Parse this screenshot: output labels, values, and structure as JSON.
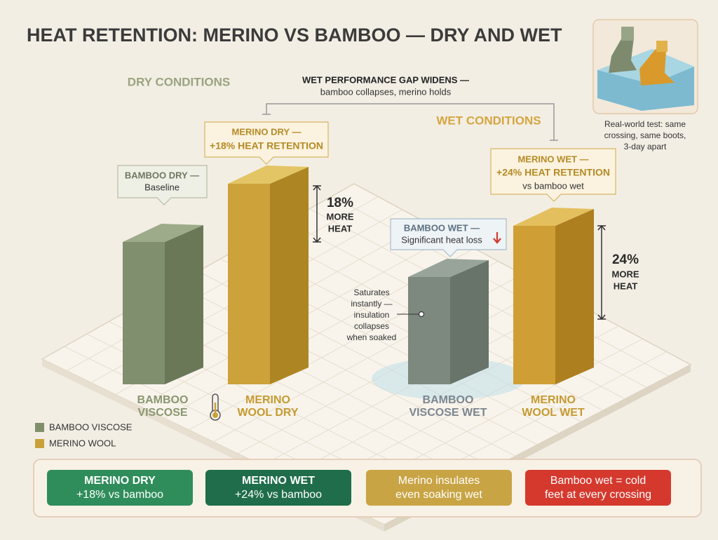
{
  "title": "HEAT RETENTION: MERINO VS BAMBOO — DRY AND WET",
  "sections": {
    "dry": "DRY CONDITIONS",
    "wet": "WET CONDITIONS"
  },
  "gap_note": {
    "title": "WET PERFORMANCE GAP WIDENS —",
    "subtitle": "bamboo collapses, merino holds"
  },
  "callouts": [
    {
      "title": "BAMBOO DRY —",
      "text": "Baseline"
    },
    {
      "title": "MERINO DRY —",
      "text": "+18% HEAT RETENTION"
    },
    {
      "title": "BAMBOO WET —",
      "text": "Significant heat loss"
    },
    {
      "title": "MERINO WET —",
      "text": "+24% HEAT RETENTION",
      "note": "vs bamboo wet"
    }
  ],
  "gaps": [
    {
      "lines": [
        "18%",
        "MORE",
        "HEAT"
      ]
    },
    {
      "lines": [
        "24%",
        "MORE",
        "HEAT"
      ]
    }
  ],
  "annotation": [
    "Saturates",
    "instantly —",
    "insulation",
    "collapses",
    "when soaked"
  ],
  "bars": [
    {
      "label": [
        "BAMBOO",
        "VISCOSE"
      ]
    },
    {
      "label": [
        "MERINO",
        "WOOL DRY"
      ]
    },
    {
      "label": [
        "BAMBOO",
        "VISCOSE WET"
      ]
    },
    {
      "label": [
        "MERINO",
        "WOOL WET"
      ]
    }
  ],
  "legend": [
    "BAMBOO VISCOSE",
    "MERINO WOOL"
  ],
  "photo_caption": [
    "Real-world test: same",
    "crossing, same boots,",
    "3-day apart"
  ],
  "summary": [
    [
      "MERINO DRY",
      "+18% vs bamboo"
    ],
    [
      "MERINO WET",
      "+24% vs bamboo"
    ],
    [
      "Merino insulates",
      "even soaking wet"
    ],
    [
      "Bamboo wet = cold",
      "feet at every crossing"
    ]
  ]
}
